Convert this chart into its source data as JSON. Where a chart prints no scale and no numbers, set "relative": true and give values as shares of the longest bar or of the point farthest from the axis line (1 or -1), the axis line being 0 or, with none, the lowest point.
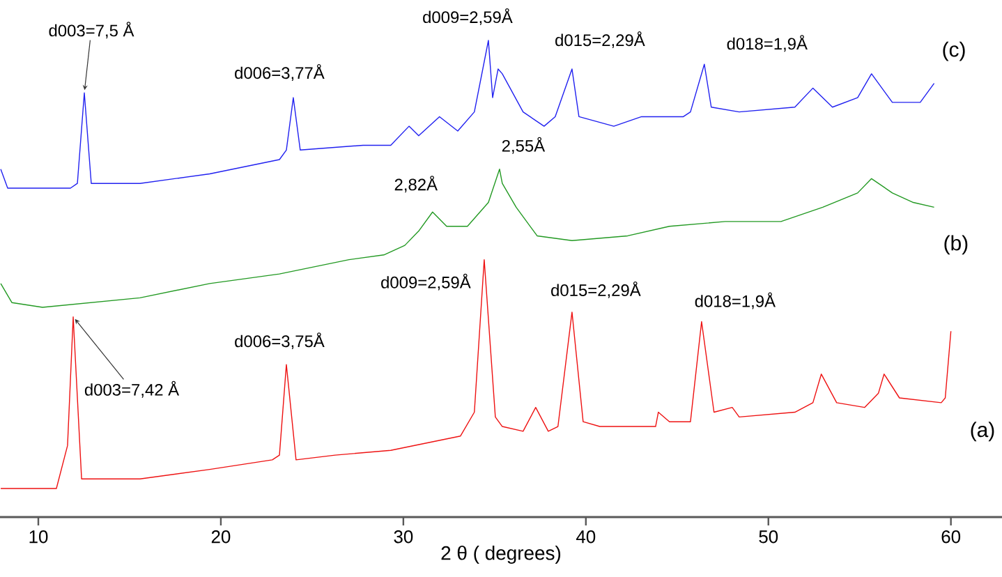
{
  "chart_data": {
    "type": "line",
    "relative": true,
    "xlabel": "2 θ ( degrees)",
    "xlim": [
      7.9,
      62.8
    ],
    "xticks": [
      10,
      20,
      30,
      40,
      50,
      60
    ],
    "series": [
      {
        "name": "(a)",
        "color": "#ee1111",
        "x": [
          7.94,
          10.99,
          11.6,
          11.91,
          12.37,
          15.57,
          19.39,
          22.82,
          23.21,
          23.59,
          24.12,
          26.26,
          29.31,
          33.13,
          33.89,
          34.43,
          35.04,
          35.42,
          36.56,
          37.25,
          37.94,
          38.47,
          39.24,
          39.85,
          40.76,
          43.82,
          43.97,
          44.58,
          45.73,
          46.34,
          47.02,
          48.02,
          48.4,
          51.45,
          52.44,
          52.9,
          53.74,
          55.27,
          56.03,
          56.34,
          57.18,
          59.47,
          59.69,
          60.0
        ],
        "values": [
          0.06,
          0.06,
          0.15,
          0.42,
          0.08,
          0.08,
          0.1,
          0.12,
          0.13,
          0.32,
          0.12,
          0.13,
          0.14,
          0.17,
          0.22,
          0.54,
          0.21,
          0.19,
          0.18,
          0.23,
          0.18,
          0.19,
          0.43,
          0.2,
          0.19,
          0.19,
          0.22,
          0.2,
          0.2,
          0.41,
          0.22,
          0.23,
          0.21,
          0.22,
          0.24,
          0.3,
          0.24,
          0.23,
          0.26,
          0.3,
          0.25,
          0.24,
          0.25,
          0.39
        ]
      },
      {
        "name": "(b)",
        "color": "#229922",
        "x": [
          7.94,
          8.55,
          10.23,
          15.57,
          19.39,
          23.21,
          27.02,
          28.93,
          30.08,
          30.84,
          31.6,
          32.37,
          33.51,
          34.66,
          35.27,
          35.42,
          36.18,
          37.33,
          39.24,
          42.29,
          44.58,
          47.63,
          50.69,
          52.98,
          54.89,
          55.65,
          56.79,
          57.94,
          59.08
        ],
        "values": [
          0.49,
          0.45,
          0.44,
          0.46,
          0.49,
          0.51,
          0.54,
          0.55,
          0.57,
          0.6,
          0.64,
          0.61,
          0.61,
          0.66,
          0.73,
          0.7,
          0.65,
          0.59,
          0.58,
          0.59,
          0.61,
          0.62,
          0.62,
          0.65,
          0.68,
          0.71,
          0.68,
          0.66,
          0.65
        ]
      },
      {
        "name": "(c)",
        "color": "#2020f0",
        "x": [
          7.94,
          8.32,
          9.47,
          11.76,
          12.14,
          12.52,
          12.9,
          15.57,
          19.39,
          23.21,
          23.59,
          23.97,
          24.35,
          27.79,
          29.31,
          30.31,
          30.84,
          31.98,
          32.98,
          33.89,
          34.66,
          34.89,
          35.19,
          35.42,
          36.56,
          37.71,
          38.32,
          39.24,
          39.62,
          41.53,
          43.05,
          45.34,
          45.73,
          46.49,
          46.87,
          48.4,
          51.45,
          52.44,
          53.51,
          54.89,
          55.65,
          56.79,
          58.32,
          59.08
        ],
        "values": [
          0.73,
          0.69,
          0.69,
          0.69,
          0.7,
          0.89,
          0.7,
          0.7,
          0.72,
          0.75,
          0.77,
          0.88,
          0.77,
          0.78,
          0.78,
          0.82,
          0.8,
          0.84,
          0.81,
          0.85,
          1.0,
          0.88,
          0.94,
          0.93,
          0.85,
          0.82,
          0.84,
          0.94,
          0.84,
          0.82,
          0.84,
          0.84,
          0.85,
          0.95,
          0.86,
          0.85,
          0.86,
          0.9,
          0.86,
          0.88,
          0.93,
          0.87,
          0.87,
          0.91
        ]
      }
    ],
    "annotations": [
      {
        "text": "d003=7,5 Å",
        "x": 12.52,
        "y": 0.89
      },
      {
        "text": "d006=3,77Å",
        "x": 23.97,
        "y": 0.88
      },
      {
        "text": "d009=2,59Å",
        "x": 34.66,
        "y": 1.0
      },
      {
        "text": "d015=2,29Å",
        "x": 39.24,
        "y": 0.94
      },
      {
        "text": "d018=1,9Å",
        "x": 46.49,
        "y": 0.95
      },
      {
        "text": "2,82Å",
        "x": 31.6,
        "y": 0.64
      },
      {
        "text": "2,55Å",
        "x": 35.27,
        "y": 0.73
      },
      {
        "text": "d009=2,59Å",
        "x": 34.43,
        "y": 0.54
      },
      {
        "text": "d003=7,42 Å",
        "x": 11.91,
        "y": 0.42
      },
      {
        "text": "d006=3,75Å",
        "x": 23.59,
        "y": 0.32
      },
      {
        "text": "d015=2,29Å",
        "x": 39.24,
        "y": 0.43
      },
      {
        "text": "d018=1,9Å",
        "x": 46.34,
        "y": 0.41
      }
    ]
  }
}
